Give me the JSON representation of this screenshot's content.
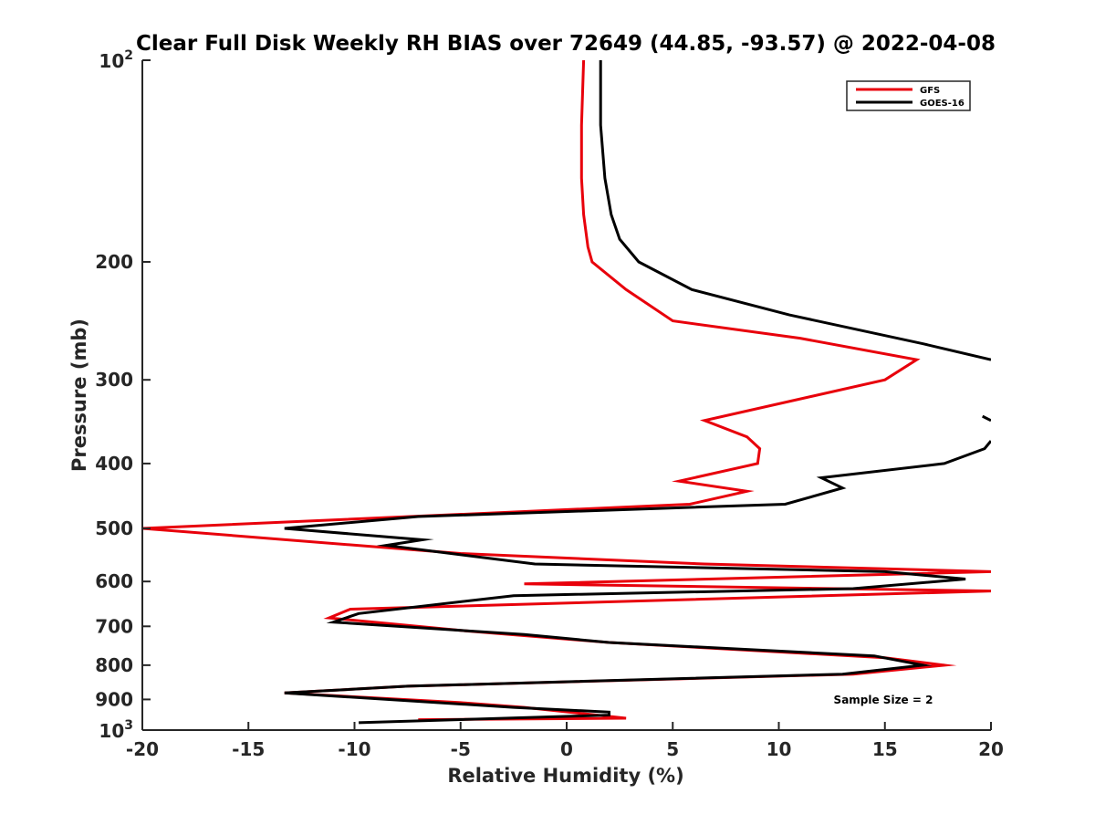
{
  "chart_data": {
    "type": "line",
    "title": "Clear Full Disk Weekly RH BIAS over 72649 (44.85, -93.57) @ 2022-04-08",
    "xlabel": "Relative Humidity (%)",
    "ylabel": "Pressure (mb)",
    "xlim": [
      -20,
      20
    ],
    "ylim": [
      100,
      1000
    ],
    "y_scale": "log",
    "y_reversed": true,
    "grid": false,
    "legend_position": "top-right",
    "x_ticks": [
      -20,
      -15,
      -10,
      -5,
      0,
      5,
      10,
      15,
      20
    ],
    "x_tick_labels": [
      "-20",
      "-15",
      "-10",
      "-5",
      "0",
      "5",
      "10",
      "15",
      "20"
    ],
    "y_ticks": [
      100,
      200,
      300,
      400,
      500,
      600,
      700,
      800,
      900,
      1000
    ],
    "y_tick_labels": [
      {
        "base": "10",
        "exp": "2"
      },
      {
        "base": "200",
        "exp": ""
      },
      {
        "base": "300",
        "exp": ""
      },
      {
        "base": "400",
        "exp": ""
      },
      {
        "base": "500",
        "exp": ""
      },
      {
        "base": "600",
        "exp": ""
      },
      {
        "base": "700",
        "exp": ""
      },
      {
        "base": "800",
        "exp": ""
      },
      {
        "base": "900",
        "exp": ""
      },
      {
        "base": "10",
        "exp": "3"
      }
    ],
    "annotation": "Sample Size = 2",
    "series": [
      {
        "name": "GFS",
        "color": "#e8000b",
        "points": [
          [
            0.8,
            100
          ],
          [
            0.7,
            125
          ],
          [
            0.7,
            150
          ],
          [
            0.8,
            170
          ],
          [
            1.0,
            190
          ],
          [
            1.2,
            200
          ],
          [
            2.8,
            220
          ],
          [
            5.0,
            245
          ],
          [
            11.0,
            260
          ],
          [
            16.5,
            280
          ],
          [
            15.0,
            300
          ],
          [
            6.5,
            345
          ],
          [
            8.5,
            365
          ],
          [
            9.1,
            380
          ],
          [
            9.0,
            400
          ],
          [
            5.3,
            425
          ],
          [
            8.5,
            440
          ],
          [
            5.8,
            460
          ],
          [
            -20.0,
            500
          ],
          [
            -5.0,
            545
          ],
          [
            6.5,
            565
          ],
          [
            20.0,
            580
          ],
          [
            -2.0,
            605
          ],
          [
            20.0,
            620
          ],
          [
            -10.2,
            660
          ],
          [
            -11.2,
            680
          ],
          [
            -5.0,
            710
          ],
          [
            2.0,
            740
          ],
          [
            15.0,
            780
          ],
          [
            17.8,
            800
          ],
          [
            13.5,
            825
          ],
          [
            -7.5,
            860
          ],
          [
            -13.3,
            880
          ],
          [
            -5.0,
            910
          ],
          [
            -2.0,
            925
          ],
          [
            2.8,
            960
          ],
          [
            -7.0,
            965
          ]
        ]
      },
      {
        "name": "GOES-16",
        "color": "#000000",
        "points": [
          [
            1.6,
            100
          ],
          [
            1.6,
            125
          ],
          [
            1.8,
            150
          ],
          [
            2.1,
            170
          ],
          [
            2.5,
            185
          ],
          [
            3.4,
            200
          ],
          [
            5.9,
            220
          ],
          [
            10.5,
            240
          ],
          [
            16.8,
            265
          ],
          [
            20.0,
            280
          ],
          [
            null,
            null
          ],
          [
            19.6,
            340
          ],
          [
            20.0,
            345
          ],
          [
            null,
            null
          ],
          [
            20.0,
            370
          ],
          [
            19.7,
            380
          ],
          [
            17.8,
            400
          ],
          [
            12.0,
            420
          ],
          [
            13.0,
            435
          ],
          [
            10.3,
            460
          ],
          [
            -7.0,
            480
          ],
          [
            -13.3,
            500
          ],
          [
            -6.8,
            520
          ],
          [
            -8.5,
            530
          ],
          [
            -1.5,
            565
          ],
          [
            15.0,
            580
          ],
          [
            18.8,
            595
          ],
          [
            13.5,
            615
          ],
          [
            -2.5,
            630
          ],
          [
            -9.8,
            670
          ],
          [
            -11.0,
            690
          ],
          [
            -2.0,
            720
          ],
          [
            2.0,
            740
          ],
          [
            14.5,
            775
          ],
          [
            16.8,
            800
          ],
          [
            13.0,
            825
          ],
          [
            -7.5,
            860
          ],
          [
            -13.3,
            880
          ],
          [
            -2.5,
            925
          ],
          [
            2.0,
            940
          ],
          [
            2.0,
            950
          ],
          [
            -9.8,
            975
          ]
        ]
      }
    ]
  }
}
